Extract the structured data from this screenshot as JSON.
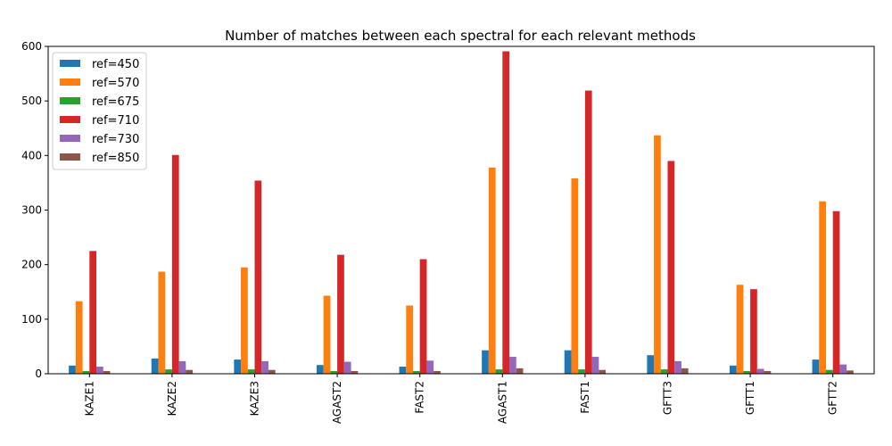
{
  "chart_data": {
    "type": "bar",
    "title": "Number of matches between each spectral for each relevant methods",
    "xlabel": "",
    "ylabel": "",
    "categories": [
      "KAZE1",
      "KAZE2",
      "KAZE3",
      "AGAST2",
      "FAST2",
      "AGAST1",
      "FAST1",
      "GFTT3",
      "GFTT1",
      "GFTT2"
    ],
    "ylim": [
      0,
      600
    ],
    "yticks": [
      0,
      100,
      200,
      300,
      400,
      500,
      600
    ],
    "grid": false,
    "legend_position": "upper-left",
    "series": [
      {
        "name": "ref=450",
        "color": "#1f77b4",
        "values": [
          15,
          28,
          26,
          16,
          13,
          43,
          43,
          34,
          15,
          26
        ]
      },
      {
        "name": "ref=570",
        "color": "#ff7f0e",
        "values": [
          133,
          187,
          195,
          143,
          125,
          378,
          358,
          437,
          163,
          316
        ]
      },
      {
        "name": "ref=675",
        "color": "#2ca02c",
        "values": [
          5,
          8,
          8,
          5,
          5,
          8,
          8,
          8,
          5,
          7
        ]
      },
      {
        "name": "ref=710",
        "color": "#d62728",
        "values": [
          225,
          401,
          354,
          218,
          210,
          591,
          519,
          390,
          155,
          298
        ]
      },
      {
        "name": "ref=730",
        "color": "#9467bd",
        "values": [
          13,
          23,
          23,
          22,
          24,
          31,
          31,
          23,
          9,
          17
        ]
      },
      {
        "name": "ref=850",
        "color": "#8c564b",
        "values": [
          5,
          7,
          7,
          5,
          5,
          10,
          7,
          10,
          5,
          6
        ]
      }
    ]
  }
}
